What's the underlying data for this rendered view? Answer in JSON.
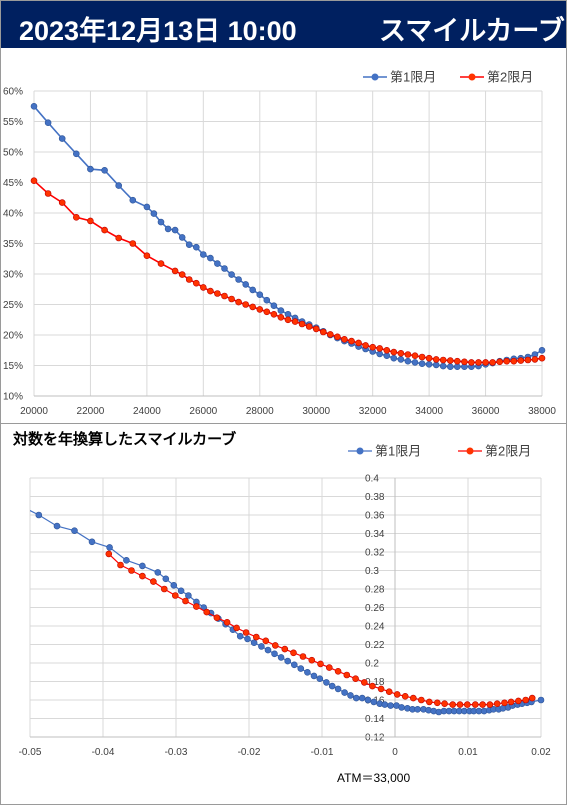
{
  "header": {
    "date_label": "2023年12月13日 10:00",
    "title": "スマイルカーブ",
    "bg_color": "#002060"
  },
  "chart_data": [
    {
      "type": "line",
      "title": "",
      "xlabel": "",
      "ylabel": "",
      "xlim": [
        20000,
        38000
      ],
      "ylim": [
        0.1,
        0.6
      ],
      "x_ticks": [
        "20000",
        "22000",
        "24000",
        "26000",
        "28000",
        "30000",
        "32000",
        "34000",
        "36000",
        "38000"
      ],
      "y_ticks": [
        "10%",
        "15%",
        "20%",
        "25%",
        "30%",
        "35%",
        "40%",
        "45%",
        "50%",
        "55%",
        "60%"
      ],
      "grid": true,
      "legend_position": "top-right",
      "series": [
        {
          "name": "第1限月",
          "color": "#4472C4",
          "x": [
            20000,
            20500,
            21000,
            21500,
            22000,
            22500,
            23000,
            23500,
            24000,
            24250,
            24500,
            24750,
            25000,
            25250,
            25500,
            25750,
            26000,
            26250,
            26500,
            26750,
            27000,
            27250,
            27500,
            27750,
            28000,
            28250,
            28500,
            28750,
            29000,
            29250,
            29500,
            29750,
            30000,
            30250,
            30500,
            30750,
            31000,
            31250,
            31500,
            31750,
            32000,
            32250,
            32500,
            32750,
            33000,
            33250,
            33500,
            33750,
            34000,
            34250,
            34500,
            34750,
            35000,
            35250,
            35500,
            35750,
            36000,
            36250,
            36500,
            36750,
            37000,
            37250,
            37500,
            37750,
            38000
          ],
          "y": [
            0.575,
            0.548,
            0.522,
            0.497,
            0.472,
            0.47,
            0.445,
            0.421,
            0.41,
            0.399,
            0.385,
            0.374,
            0.372,
            0.36,
            0.348,
            0.344,
            0.332,
            0.326,
            0.317,
            0.309,
            0.299,
            0.291,
            0.283,
            0.274,
            0.266,
            0.257,
            0.248,
            0.24,
            0.234,
            0.228,
            0.222,
            0.217,
            0.212,
            0.206,
            0.2,
            0.195,
            0.19,
            0.186,
            0.181,
            0.177,
            0.173,
            0.169,
            0.166,
            0.162,
            0.16,
            0.157,
            0.155,
            0.153,
            0.152,
            0.151,
            0.149,
            0.148,
            0.148,
            0.148,
            0.148,
            0.149,
            0.152,
            0.154,
            0.157,
            0.159,
            0.161,
            0.162,
            0.164,
            0.168,
            0.175
          ]
        },
        {
          "name": "第2限月",
          "color": "#FF0000",
          "x": [
            20000,
            20500,
            21000,
            21500,
            22000,
            22500,
            23000,
            23500,
            24000,
            24500,
            25000,
            25250,
            25500,
            25750,
            26000,
            26250,
            26500,
            26750,
            27000,
            27250,
            27500,
            27750,
            28000,
            28250,
            28500,
            28750,
            29000,
            29250,
            29500,
            29750,
            30000,
            30250,
            30500,
            30750,
            31000,
            31250,
            31500,
            31750,
            32000,
            32250,
            32500,
            32750,
            33000,
            33250,
            33500,
            33750,
            34000,
            34250,
            34500,
            34750,
            35000,
            35250,
            35500,
            35750,
            36000,
            36250,
            36500,
            36750,
            37000,
            37250,
            37500,
            37750,
            38000
          ],
          "y": [
            0.453,
            0.432,
            0.417,
            0.393,
            0.387,
            0.372,
            0.359,
            0.35,
            0.33,
            0.317,
            0.305,
            0.299,
            0.291,
            0.285,
            0.278,
            0.272,
            0.268,
            0.264,
            0.259,
            0.254,
            0.25,
            0.246,
            0.242,
            0.238,
            0.234,
            0.229,
            0.225,
            0.222,
            0.218,
            0.214,
            0.21,
            0.205,
            0.201,
            0.197,
            0.193,
            0.19,
            0.187,
            0.183,
            0.18,
            0.178,
            0.175,
            0.172,
            0.17,
            0.168,
            0.166,
            0.164,
            0.162,
            0.16,
            0.159,
            0.158,
            0.157,
            0.156,
            0.155,
            0.155,
            0.155,
            0.155,
            0.156,
            0.157,
            0.157,
            0.158,
            0.159,
            0.16,
            0.162
          ]
        }
      ]
    },
    {
      "type": "line",
      "title": "対数を年換算したスマイルカーブ",
      "xlabel": "",
      "ylabel": "",
      "xlim": [
        -0.05,
        0.02
      ],
      "ylim": [
        0.12,
        0.4
      ],
      "x_ticks": [
        "-0.05",
        "-0.04",
        "-0.03",
        "-0.02",
        "-0.01",
        "0",
        "0.01",
        "0.02"
      ],
      "y_ticks": [
        "0.12",
        "0.14",
        "0.16",
        "0.18",
        "0.2",
        "0.22",
        "0.24",
        "0.26",
        "0.28",
        "0.3",
        "0.32",
        "0.34",
        "0.36",
        "0.38",
        "0.4"
      ],
      "grid": true,
      "legend_position": "top-right",
      "annotation": "ATM＝33,000",
      "series": [
        {
          "name": "第1限月",
          "color": "#4472C4",
          "x": [
            -0.0513,
            -0.0488,
            -0.0463,
            -0.0439,
            -0.0415,
            -0.0391,
            -0.0368,
            -0.0346,
            -0.0325,
            -0.0314,
            -0.0303,
            -0.0293,
            -0.0283,
            -0.0272,
            -0.0262,
            -0.0252,
            -0.0242,
            -0.0232,
            -0.0222,
            -0.0212,
            -0.0202,
            -0.0193,
            -0.0183,
            -0.0174,
            -0.0165,
            -0.0156,
            -0.0147,
            -0.0138,
            -0.0129,
            -0.012,
            -0.0111,
            -0.0103,
            -0.0094,
            -0.0086,
            -0.0078,
            -0.0069,
            -0.0061,
            -0.0053,
            -0.0045,
            -0.0037,
            -0.0029,
            -0.0021,
            -0.0014,
            -0.0006,
            0.0002,
            0.0009,
            0.0017,
            0.0024,
            0.0031,
            0.0039,
            0.0046,
            0.0053,
            0.006,
            0.0067,
            0.0074,
            0.0081,
            0.0088,
            0.0095,
            0.0102,
            0.0108,
            0.0115,
            0.0122,
            0.0129,
            0.0135,
            0.0142,
            0.0148,
            0.0155,
            0.0161,
            0.0168,
            0.0174,
            0.0181,
            0.0187,
            0.02
          ],
          "y": [
            0.37,
            0.36,
            0.348,
            0.343,
            0.331,
            0.325,
            0.311,
            0.305,
            0.298,
            0.291,
            0.284,
            0.278,
            0.273,
            0.266,
            0.26,
            0.254,
            0.248,
            0.242,
            0.236,
            0.229,
            0.226,
            0.222,
            0.218,
            0.214,
            0.21,
            0.206,
            0.202,
            0.198,
            0.194,
            0.19,
            0.186,
            0.183,
            0.179,
            0.175,
            0.172,
            0.168,
            0.165,
            0.162,
            0.162,
            0.16,
            0.158,
            0.156,
            0.155,
            0.154,
            0.154,
            0.152,
            0.151,
            0.15,
            0.15,
            0.15,
            0.149,
            0.148,
            0.147,
            0.148,
            0.148,
            0.148,
            0.148,
            0.148,
            0.148,
            0.148,
            0.148,
            0.148,
            0.149,
            0.15,
            0.15,
            0.151,
            0.152,
            0.154,
            0.155,
            0.156,
            0.157,
            0.158,
            0.16
          ]
        },
        {
          "name": "第2限月",
          "color": "#FF0000",
          "x": [
            -0.0392,
            -0.0376,
            -0.0361,
            -0.0346,
            -0.0331,
            -0.0316,
            -0.0301,
            -0.0287,
            -0.0272,
            -0.0258,
            -0.0244,
            -0.023,
            -0.0217,
            -0.0204,
            -0.019,
            -0.0177,
            -0.0164,
            -0.0151,
            -0.0139,
            -0.0126,
            -0.0114,
            -0.0102,
            -0.009,
            -0.0078,
            -0.0066,
            -0.0054,
            -0.0042,
            -0.0031,
            -0.0019,
            -0.0008,
            0.0003,
            0.0014,
            0.0025,
            0.0036,
            0.0047,
            0.0058,
            0.0068,
            0.0079,
            0.0089,
            0.0099,
            0.011,
            0.012,
            0.013,
            0.014,
            0.015,
            0.0159,
            0.0169,
            0.0179,
            0.0188
          ],
          "y": [
            0.318,
            0.306,
            0.3,
            0.294,
            0.288,
            0.28,
            0.273,
            0.267,
            0.261,
            0.255,
            0.249,
            0.244,
            0.238,
            0.233,
            0.228,
            0.224,
            0.219,
            0.215,
            0.211,
            0.207,
            0.203,
            0.199,
            0.195,
            0.191,
            0.187,
            0.183,
            0.179,
            0.175,
            0.172,
            0.169,
            0.166,
            0.164,
            0.162,
            0.16,
            0.158,
            0.157,
            0.156,
            0.155,
            0.155,
            0.155,
            0.155,
            0.155,
            0.155,
            0.156,
            0.157,
            0.158,
            0.159,
            0.16,
            0.162
          ]
        }
      ]
    }
  ]
}
